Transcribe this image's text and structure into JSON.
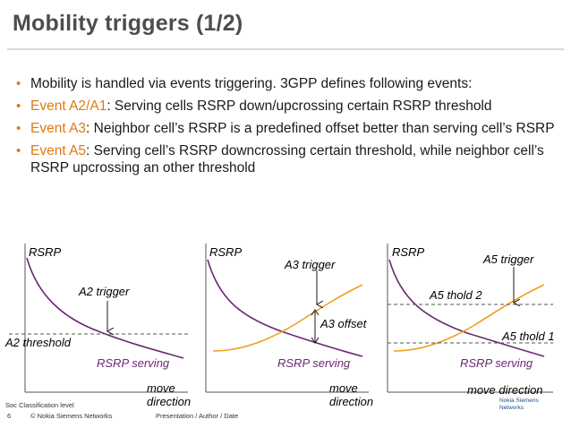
{
  "slide": {
    "title": "Mobility triggers (1/2)",
    "bullets": [
      {
        "prefix": "",
        "highlight": "",
        "rest": "Mobility is handled via events triggering. 3GPP defines following events:"
      },
      {
        "prefix": "",
        "highlight": "Event A2/A1",
        "rest": ": Serving cells RSRP down/upcrossing certain RSRP threshold"
      },
      {
        "prefix": "",
        "highlight": "Event A3",
        "rest": ": Neighbor cell’s RSRP is a predefined offset better than serving cell’s RSRP"
      },
      {
        "prefix": "",
        "highlight": "Event A5",
        "rest": ": Serving cell’s RSRP downcrossing certain threshold, while neighbor cell’s RSRP upcrossing an other threshold"
      }
    ]
  },
  "diagrams": {
    "d1": {
      "ylabel": "RSRP",
      "trigger": "A2 trigger",
      "threshold": "A2 threshold",
      "serving": "RSRP serving",
      "move1": "move",
      "move2": "direction"
    },
    "d2": {
      "ylabel": "RSRP",
      "trigger": "A3 trigger",
      "offset": "A3 offset",
      "serving": "RSRP serving",
      "move1": "move",
      "move2": "direction"
    },
    "d3": {
      "ylabel": "RSRP",
      "trigger": "A5 trigger",
      "thold2": "A5 thold 2",
      "thold1": "A5 thold 1",
      "serving": "RSRP serving",
      "move": "move direction"
    }
  },
  "colors": {
    "accent": "#e07a10",
    "serving": "#6b2a73",
    "neighbor": "#f39c1e"
  },
  "footer": {
    "classification": "Soc Classification level",
    "page": "6",
    "copyright": "© Nokia Siemens Networks",
    "presentation": "Presentation / Author / Date",
    "logo_line1": "Nokia Siemens",
    "logo_line2": "Networks"
  }
}
